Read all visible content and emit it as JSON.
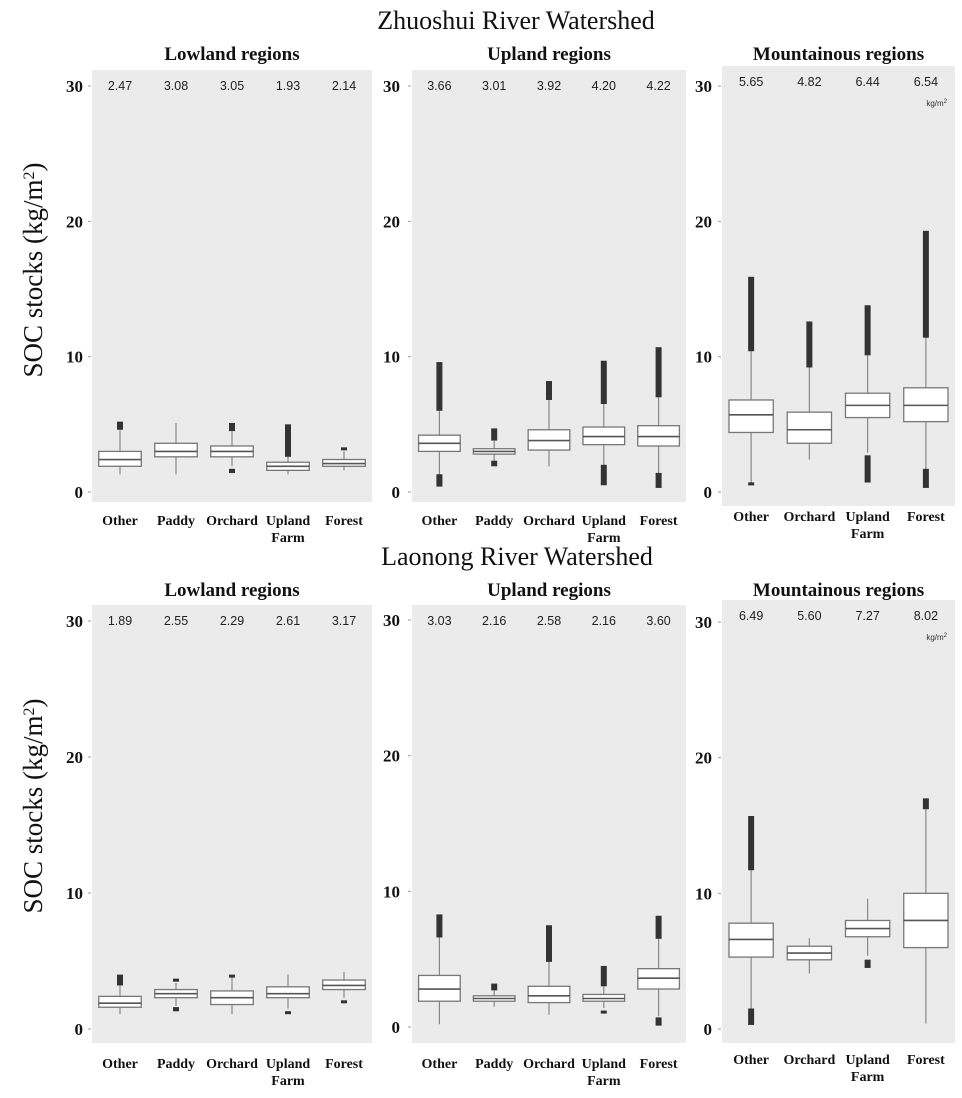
{
  "figure": {
    "ylabel": "SOC stocks (kg/m",
    "ylabel_sup": "2",
    "ylabel_close": ")",
    "unit_label": "kg/m",
    "unit_sup": "2",
    "y_ticks": [
      "0",
      "10",
      "20",
      "30"
    ]
  },
  "chart_data": [
    {
      "type": "box",
      "watershed": "Zhuoshui River Watershed",
      "title": "Lowland regions",
      "ylim": [
        0,
        30
      ],
      "categories": [
        "Other",
        "Paddy",
        "Orchard",
        "Upland Farm",
        "Forest"
      ],
      "means": [
        "2.47",
        "3.08",
        "3.05",
        "1.93",
        "2.14"
      ],
      "boxes": [
        {
          "low": 1.3,
          "q1": 1.9,
          "median": 2.4,
          "q3": 3.0,
          "high": 4.6,
          "outliers_high": [
            4.6,
            5.2
          ],
          "outliers_low": []
        },
        {
          "low": 1.3,
          "q1": 2.6,
          "median": 3.0,
          "q3": 3.6,
          "high": 5.1,
          "outliers_high": [],
          "outliers_low": []
        },
        {
          "low": 1.9,
          "q1": 2.6,
          "median": 3.0,
          "q3": 3.4,
          "high": 4.5,
          "outliers_high": [
            4.5,
            5.1
          ],
          "outliers_low": [
            1.4,
            1.6
          ]
        },
        {
          "low": 1.3,
          "q1": 1.6,
          "median": 1.9,
          "q3": 2.2,
          "high": 2.6,
          "outliers_high": [
            2.6,
            5.0
          ],
          "outliers_low": []
        },
        {
          "low": 1.6,
          "q1": 1.9,
          "median": 2.1,
          "q3": 2.4,
          "high": 3.0,
          "outliers_high": [
            3.2,
            3.3
          ],
          "outliers_low": []
        }
      ]
    },
    {
      "type": "box",
      "watershed": "Zhuoshui River Watershed",
      "title": "Upland regions",
      "ylim": [
        0,
        30
      ],
      "categories": [
        "Other",
        "Paddy",
        "Orchard",
        "Upland Farm",
        "Forest"
      ],
      "means": [
        "3.66",
        "3.01",
        "3.92",
        "4.20",
        "4.22"
      ],
      "boxes": [
        {
          "low": 1.2,
          "q1": 3.0,
          "median": 3.6,
          "q3": 4.2,
          "high": 6.0,
          "outliers_high": [
            6.0,
            9.6
          ],
          "outliers_low": [
            0.4,
            1.2
          ]
        },
        {
          "low": 2.2,
          "q1": 2.8,
          "median": 3.0,
          "q3": 3.2,
          "high": 3.8,
          "outliers_high": [
            3.8,
            4.7
          ],
          "outliers_low": [
            1.9,
            2.2
          ]
        },
        {
          "low": 1.9,
          "q1": 3.1,
          "median": 3.8,
          "q3": 4.6,
          "high": 6.8,
          "outliers_high": [
            6.8,
            8.2
          ],
          "outliers_low": []
        },
        {
          "low": 1.9,
          "q1": 3.5,
          "median": 4.1,
          "q3": 4.8,
          "high": 6.5,
          "outliers_high": [
            6.5,
            9.7
          ],
          "outliers_low": [
            0.5,
            1.9
          ]
        },
        {
          "low": 1.3,
          "q1": 3.4,
          "median": 4.1,
          "q3": 4.9,
          "high": 7.0,
          "outliers_high": [
            7.0,
            10.7
          ],
          "outliers_low": [
            0.3,
            1.3
          ]
        }
      ]
    },
    {
      "type": "box",
      "watershed": "Zhuoshui River Watershed",
      "title": "Mountainous regions",
      "ylim": [
        0,
        30
      ],
      "categories": [
        "Other",
        "Orchard",
        "Upland Farm",
        "Forest"
      ],
      "means": [
        "5.65",
        "4.82",
        "6.44",
        "6.54"
      ],
      "boxes": [
        {
          "low": 0.6,
          "q1": 4.4,
          "median": 5.7,
          "q3": 6.8,
          "high": 10.4,
          "outliers_high": [
            10.4,
            15.9
          ],
          "outliers_low": [
            0.6,
            0.6
          ]
        },
        {
          "low": 2.4,
          "q1": 3.6,
          "median": 4.6,
          "q3": 5.9,
          "high": 9.2,
          "outliers_high": [
            9.2,
            12.6
          ],
          "outliers_low": []
        },
        {
          "low": 2.9,
          "q1": 5.5,
          "median": 6.4,
          "q3": 7.3,
          "high": 10.1,
          "outliers_high": [
            10.1,
            13.8
          ],
          "outliers_low": [
            0.7,
            2.6
          ]
        },
        {
          "low": 1.6,
          "q1": 5.2,
          "median": 6.4,
          "q3": 7.7,
          "high": 11.4,
          "outliers_high": [
            11.4,
            19.3
          ],
          "outliers_low": [
            0.3,
            1.6
          ]
        }
      ]
    },
    {
      "type": "box",
      "watershed": "Laonong River Watershed",
      "title": "Lowland regions",
      "ylim": [
        0,
        30
      ],
      "categories": [
        "Other",
        "Paddy",
        "Orchard",
        "Upland Farm",
        "Forest"
      ],
      "means": [
        "1.89",
        "2.55",
        "2.29",
        "2.61",
        "3.17"
      ],
      "boxes": [
        {
          "low": 1.1,
          "q1": 1.6,
          "median": 1.9,
          "q3": 2.4,
          "high": 3.2,
          "outliers_high": [
            3.2,
            4.0
          ],
          "outliers_low": []
        },
        {
          "low": 1.7,
          "q1": 2.3,
          "median": 2.6,
          "q3": 2.9,
          "high": 3.4,
          "outliers_high": [
            3.5,
            3.7
          ],
          "outliers_low": [
            1.3,
            1.5
          ]
        },
        {
          "low": 1.1,
          "q1": 1.8,
          "median": 2.3,
          "q3": 2.8,
          "high": 3.8,
          "outliers_high": [
            3.8,
            4.0
          ],
          "outliers_low": []
        },
        {
          "low": 1.5,
          "q1": 2.3,
          "median": 2.6,
          "q3": 3.1,
          "high": 4.0,
          "outliers_high": [],
          "outliers_low": [
            1.2,
            1.2
          ]
        },
        {
          "low": 2.3,
          "q1": 2.9,
          "median": 3.2,
          "q3": 3.6,
          "high": 4.2,
          "outliers_high": [],
          "outliers_low": [
            2.0,
            2.0
          ]
        }
      ]
    },
    {
      "type": "box",
      "watershed": "Laonong River Watershed",
      "title": "Upland regions",
      "ylim": [
        0,
        30
      ],
      "categories": [
        "Other",
        "Paddy",
        "Orchard",
        "Upland Farm",
        "Forest"
      ],
      "means": [
        "3.03",
        "2.16",
        "2.58",
        "2.16",
        "3.60"
      ],
      "boxes": [
        {
          "low": 0.2,
          "q1": 1.9,
          "median": 2.8,
          "q3": 3.8,
          "high": 6.6,
          "outliers_high": [
            6.6,
            8.3
          ],
          "outliers_low": []
        },
        {
          "low": 1.5,
          "q1": 1.9,
          "median": 2.1,
          "q3": 2.3,
          "high": 2.7,
          "outliers_high": [
            2.7,
            3.2
          ],
          "outliers_low": []
        },
        {
          "low": 0.9,
          "q1": 1.8,
          "median": 2.3,
          "q3": 3.0,
          "high": 4.8,
          "outliers_high": [
            4.8,
            7.5
          ],
          "outliers_low": []
        },
        {
          "low": 1.4,
          "q1": 1.9,
          "median": 2.1,
          "q3": 2.4,
          "high": 3.0,
          "outliers_high": [
            3.0,
            4.5
          ],
          "outliers_low": [
            1.1,
            1.1
          ]
        },
        {
          "low": 0.8,
          "q1": 2.8,
          "median": 3.6,
          "q3": 4.3,
          "high": 6.5,
          "outliers_high": [
            6.5,
            8.2
          ],
          "outliers_low": [
            0.1,
            0.6
          ]
        }
      ]
    },
    {
      "type": "box",
      "watershed": "Laonong River Watershed",
      "title": "Mountainous regions",
      "ylim": [
        0,
        30
      ],
      "categories": [
        "Other",
        "Orchard",
        "Upland Farm",
        "Forest"
      ],
      "means": [
        "6.49",
        "5.60",
        "7.27",
        "8.02"
      ],
      "boxes": [
        {
          "low": 1.4,
          "q1": 5.3,
          "median": 6.6,
          "q3": 7.8,
          "high": 11.7,
          "outliers_high": [
            11.7,
            15.7
          ],
          "outliers_low": [
            0.3,
            1.4
          ]
        },
        {
          "low": 4.1,
          "q1": 5.1,
          "median": 5.6,
          "q3": 6.1,
          "high": 6.7,
          "outliers_high": [],
          "outliers_low": []
        },
        {
          "low": 5.4,
          "q1": 6.8,
          "median": 7.4,
          "q3": 8.0,
          "high": 9.6,
          "outliers_high": [],
          "outliers_low": [
            4.5,
            5.0
          ]
        },
        {
          "low": 0.4,
          "q1": 6.0,
          "median": 8.0,
          "q3": 10.0,
          "high": 16.2,
          "outliers_high": [
            16.2,
            17.0
          ],
          "outliers_low": []
        }
      ]
    }
  ]
}
